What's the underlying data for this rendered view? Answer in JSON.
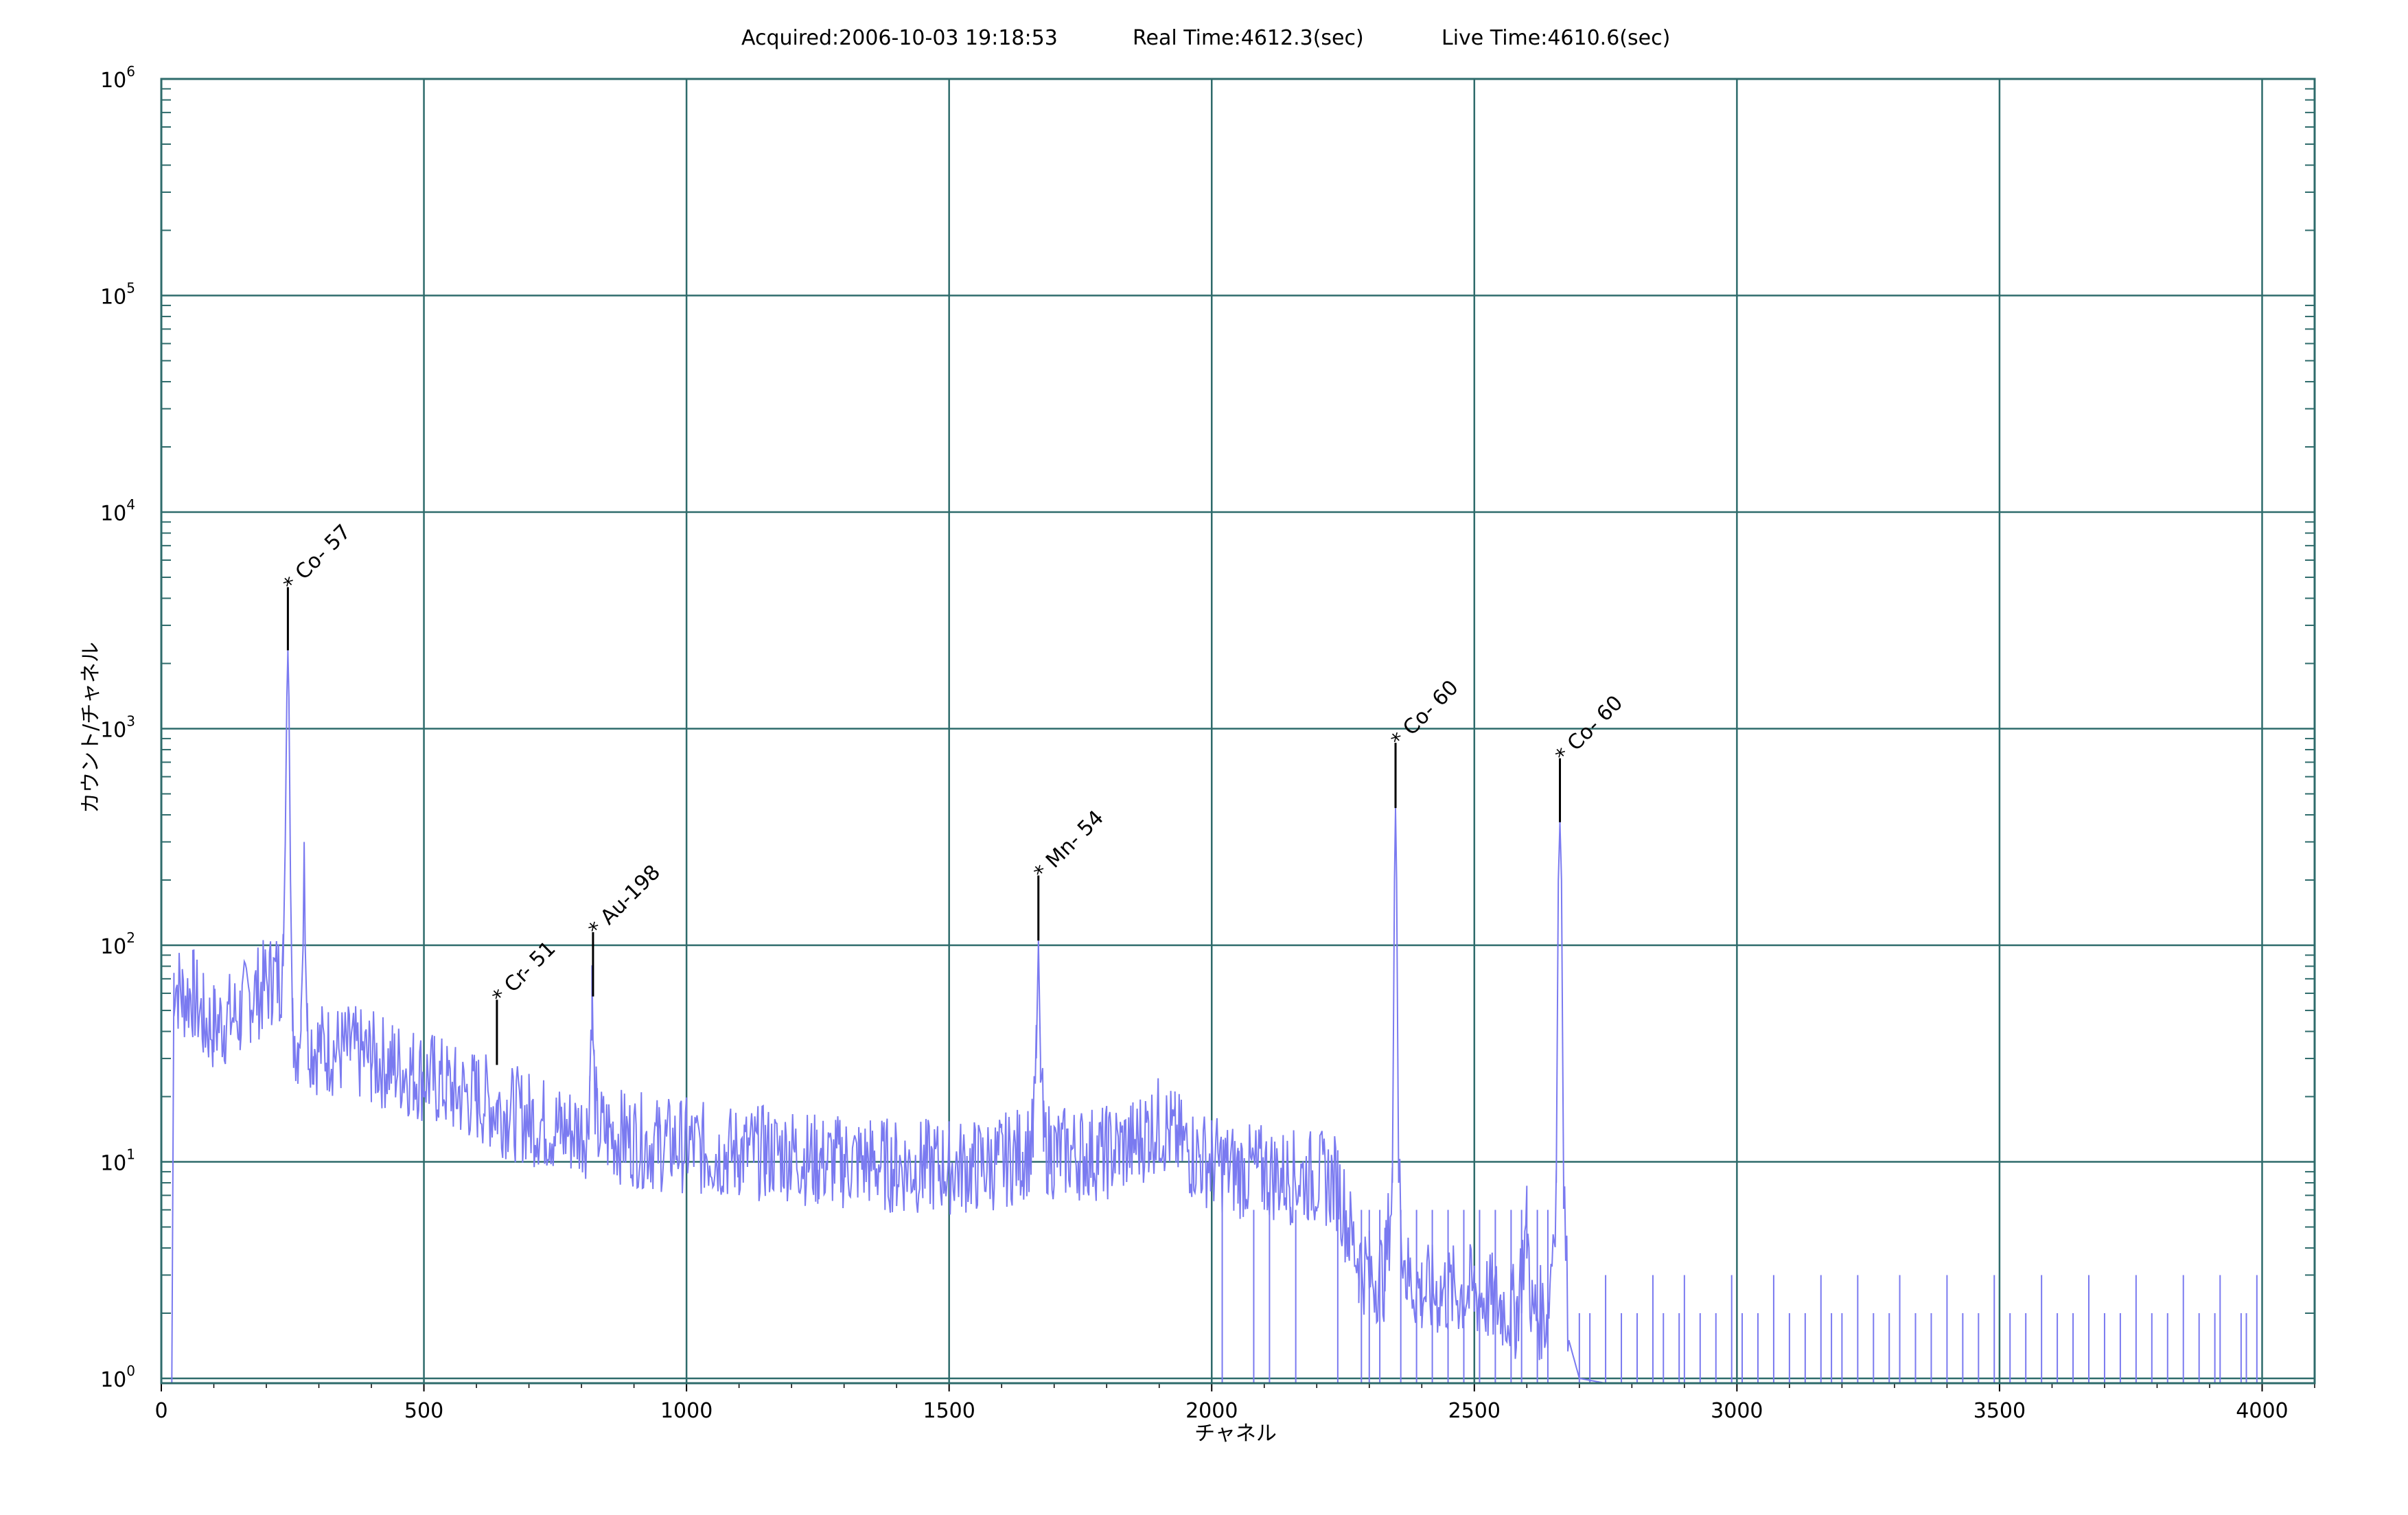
{
  "header": {
    "acquired": "Acquired:2006-10-03 19:18:53",
    "real_time": "Real Time:4612.3(sec)",
    "live_time": "Live Time:4610.6(sec)"
  },
  "chart_data": {
    "type": "line",
    "title": "",
    "xlabel": "チャネル",
    "ylabel": "カウント/チャネル",
    "xlim": [
      0,
      4100
    ],
    "ylim": [
      0.95,
      1000000
    ],
    "y_scale": "log",
    "grid": true,
    "x_ticks": [
      "0",
      "500",
      "1000",
      "1500",
      "2000",
      "2500",
      "3000",
      "3500",
      "4000"
    ],
    "x_tick_values": [
      0,
      500,
      1000,
      1500,
      2000,
      2500,
      3000,
      3500,
      4000
    ],
    "y_ticks": [
      {
        "value": 1,
        "base": "10",
        "exp": "0"
      },
      {
        "value": 10,
        "base": "10",
        "exp": "1"
      },
      {
        "value": 100,
        "base": "10",
        "exp": "2"
      },
      {
        "value": 1000,
        "base": "10",
        "exp": "3"
      },
      {
        "value": 10000,
        "base": "10",
        "exp": "4"
      },
      {
        "value": 100000,
        "base": "10",
        "exp": "5"
      },
      {
        "value": 1000000,
        "base": "10",
        "exp": "6"
      }
    ],
    "series": [
      {
        "color": "#7a7af0",
        "points": [
          [
            0,
            0.95
          ],
          [
            20,
            0.95
          ],
          [
            24,
            70
          ],
          [
            40,
            58
          ],
          [
            60,
            60
          ],
          [
            80,
            45
          ],
          [
            100,
            42
          ],
          [
            120,
            45
          ],
          [
            150,
            48
          ],
          [
            170,
            58
          ],
          [
            190,
            62
          ],
          [
            210,
            70
          ],
          [
            225,
            72
          ],
          [
            232,
            80
          ],
          [
            236,
            300
          ],
          [
            239,
            1400
          ],
          [
            241,
            2300
          ],
          [
            243,
            1400
          ],
          [
            246,
            200
          ],
          [
            250,
            40
          ],
          [
            260,
            36
          ],
          [
            266,
            50
          ],
          [
            270,
            100
          ],
          [
            272,
            300
          ],
          [
            274,
            100
          ],
          [
            278,
            40
          ],
          [
            290,
            34
          ],
          [
            320,
            33
          ],
          [
            360,
            32
          ],
          [
            400,
            30
          ],
          [
            440,
            28
          ],
          [
            480,
            26
          ],
          [
            520,
            24
          ],
          [
            560,
            21
          ],
          [
            600,
            20
          ],
          [
            640,
            18
          ],
          [
            660,
            17
          ],
          [
            700,
            16
          ],
          [
            760,
            14
          ],
          [
            810,
            14
          ],
          [
            816,
            25
          ],
          [
            820,
            60
          ],
          [
            824,
            25
          ],
          [
            830,
            14
          ],
          [
            880,
            13
          ],
          [
            950,
            12
          ],
          [
            1000,
            12
          ],
          [
            1050,
            11
          ],
          [
            1100,
            11
          ],
          [
            1150,
            11
          ],
          [
            1200,
            11
          ],
          [
            1250,
            10
          ],
          [
            1300,
            10
          ],
          [
            1350,
            10
          ],
          [
            1400,
            9.5
          ],
          [
            1450,
            9.5
          ],
          [
            1500,
            9.5
          ],
          [
            1550,
            9.5
          ],
          [
            1600,
            10
          ],
          [
            1640,
            11
          ],
          [
            1660,
            12
          ],
          [
            1666,
            30
          ],
          [
            1670,
            105
          ],
          [
            1674,
            30
          ],
          [
            1680,
            12
          ],
          [
            1700,
            11
          ],
          [
            1750,
            11
          ],
          [
            1800,
            11
          ],
          [
            1850,
            12
          ],
          [
            1880,
            14
          ],
          [
            1900,
            15
          ],
          [
            1930,
            13
          ],
          [
            1960,
            11
          ],
          [
            2000,
            10
          ],
          [
            2050,
            9
          ],
          [
            2100,
            9
          ],
          [
            2150,
            8.5
          ],
          [
            2200,
            8.5
          ],
          [
            2240,
            8
          ],
          [
            2260,
            5
          ],
          [
            2280,
            3.5
          ],
          [
            2300,
            3
          ],
          [
            2330,
            3
          ],
          [
            2344,
            8
          ],
          [
            2348,
            200
          ],
          [
            2350,
            430
          ],
          [
            2352,
            200
          ],
          [
            2356,
            8
          ],
          [
            2370,
            3
          ],
          [
            2400,
            2.5
          ],
          [
            2450,
            2.5
          ],
          [
            2500,
            2.5
          ],
          [
            2550,
            2.2
          ],
          [
            2580,
            2
          ],
          [
            2600,
            5
          ],
          [
            2610,
            2
          ],
          [
            2640,
            2
          ],
          [
            2656,
            8
          ],
          [
            2660,
            200
          ],
          [
            2663,
            370
          ],
          [
            2666,
            200
          ],
          [
            2670,
            8
          ],
          [
            2680,
            1.5
          ],
          [
            2700,
            1
          ],
          [
            2750,
            0.95
          ],
          [
            2800,
            0.95
          ],
          [
            2900,
            0.95
          ],
          [
            3000,
            0.95
          ],
          [
            3200,
            0.95
          ],
          [
            3400,
            0.95
          ],
          [
            3600,
            0.95
          ],
          [
            3800,
            0.95
          ],
          [
            4000,
            0.95
          ]
        ],
        "noise_spikes": [
          2020,
          2080,
          2110,
          2160,
          2240,
          2285,
          2300,
          2320,
          2360,
          2390,
          2420,
          2450,
          2480,
          2510,
          2540,
          2570,
          2590,
          2620,
          2640,
          2700,
          2720,
          2750,
          2780,
          2810,
          2840,
          2860,
          2890,
          2900,
          2930,
          2960,
          2990,
          3010,
          3040,
          3070,
          3100,
          3130,
          3160,
          3180,
          3200,
          3230,
          3260,
          3290,
          3310,
          3340,
          3370,
          3400,
          3430,
          3460,
          3490,
          3520,
          3550,
          3580,
          3610,
          3640,
          3670,
          3700,
          3730,
          3760,
          3790,
          3820,
          3850,
          3880,
          3910,
          3920,
          3960,
          3970,
          3990
        ]
      }
    ],
    "annotations": [
      {
        "label": "* Co- 57",
        "x": 241,
        "y_top": 4500,
        "y_bottom": 2300
      },
      {
        "label": "* Cr- 51",
        "x": 639,
        "y_top": 56,
        "y_bottom": 28
      },
      {
        "label": "* Au-198",
        "x": 822,
        "y_top": 115,
        "y_bottom": 58
      },
      {
        "label": "* Mn- 54",
        "x": 1670,
        "y_top": 210,
        "y_bottom": 105
      },
      {
        "label": "* Co- 60",
        "x": 2350,
        "y_top": 860,
        "y_bottom": 430
      },
      {
        "label": "* Co- 60",
        "x": 2663,
        "y_top": 730,
        "y_bottom": 370
      }
    ]
  }
}
